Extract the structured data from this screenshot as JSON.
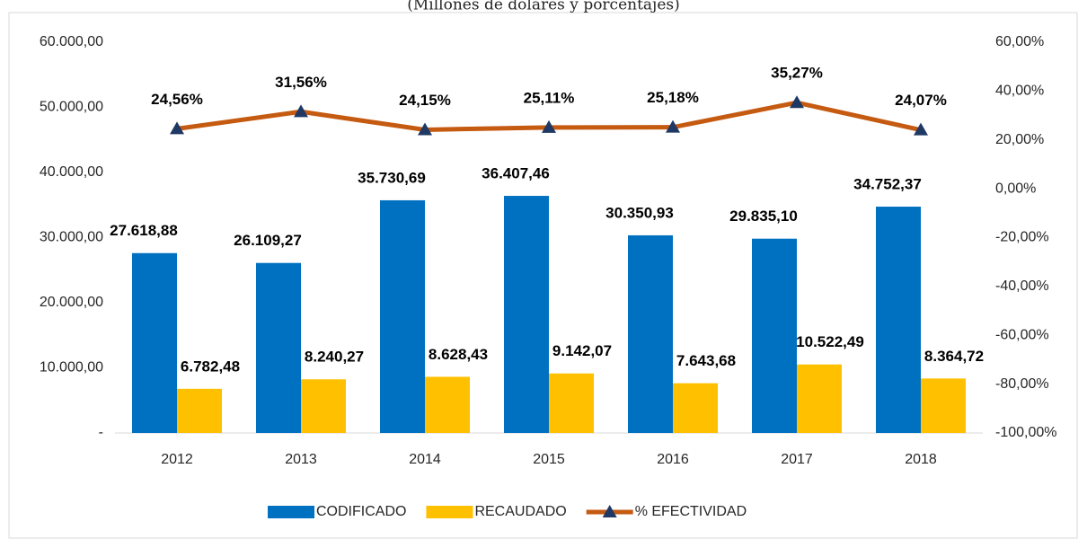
{
  "chart_data": {
    "type": "bar_line",
    "subtitle": "(Millones de dólares y porcentajes)",
    "categories": [
      "2012",
      "2013",
      "2014",
      "2015",
      "2016",
      "2017",
      "2018"
    ],
    "series": [
      {
        "name": "CODIFICADO",
        "type": "bar",
        "color": "#0070c0",
        "values": [
          27618.88,
          26109.27,
          35730.69,
          36407.46,
          30350.93,
          29835.1,
          34752.37
        ],
        "value_labels": [
          "27.618,88",
          "26.109,27",
          "35.730,69",
          "36.407,46",
          "30.350,93",
          "29.835,10",
          "34.752,37"
        ]
      },
      {
        "name": "RECAUDADO",
        "type": "bar",
        "color": "#ffc000",
        "values": [
          6782.48,
          8240.27,
          8628.43,
          9142.07,
          7643.68,
          10522.49,
          8364.72
        ],
        "value_labels": [
          "6.782,48",
          "8.240,27",
          "8.628,43",
          "9.142,07",
          "7.643,68",
          "10.522,49",
          "8.364,72"
        ]
      },
      {
        "name": "% EFECTIVIDAD",
        "type": "line",
        "axis": "y2",
        "color": "#c55a11",
        "marker_color": "#1f3864",
        "values": [
          24.56,
          31.56,
          24.15,
          25.11,
          25.18,
          35.27,
          24.07
        ],
        "value_labels": [
          "24,56%",
          "31,56%",
          "24,15%",
          "25,11%",
          "25,18%",
          "35,27%",
          "24,07%"
        ]
      }
    ],
    "ylim": [
      0,
      60000
    ],
    "yticks": [
      {
        "value": 0,
        "label": "-"
      },
      {
        "value": 10000,
        "label": "10.000,00"
      },
      {
        "value": 20000,
        "label": "20.000,00"
      },
      {
        "value": 30000,
        "label": "30.000,00"
      },
      {
        "value": 40000,
        "label": "40.000,00"
      },
      {
        "value": 50000,
        "label": "50.000,00"
      },
      {
        "value": 60000,
        "label": "60.000,00"
      }
    ],
    "y2lim": [
      -100,
      60
    ],
    "y2ticks": [
      {
        "value": -100,
        "label": "-100,00%"
      },
      {
        "value": -80,
        "label": "-80,00%"
      },
      {
        "value": -60,
        "label": "-60,00%"
      },
      {
        "value": -40,
        "label": "-40,00%"
      },
      {
        "value": -20,
        "label": "-20,00%"
      },
      {
        "value": 0,
        "label": "0,00%"
      },
      {
        "value": 20,
        "label": "20,00%"
      },
      {
        "value": 40,
        "label": "40,00%"
      },
      {
        "value": 60,
        "label": "60,00%"
      }
    ],
    "legend": "bottom"
  }
}
